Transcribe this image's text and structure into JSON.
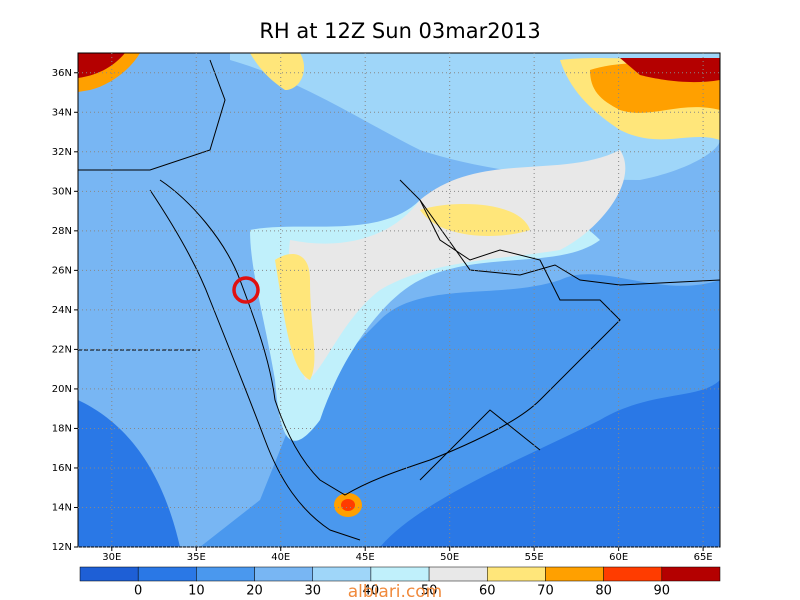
{
  "map": {
    "title": "RH at 12Z Sun 03mar2013",
    "xlim": [
      28,
      66
    ],
    "ylim": [
      12,
      37
    ],
    "xticks": [
      {
        "value": 30,
        "label": "30E"
      },
      {
        "value": 35,
        "label": "35E"
      },
      {
        "value": 40,
        "label": "40E"
      },
      {
        "value": 45,
        "label": "45E"
      },
      {
        "value": 50,
        "label": "50E"
      },
      {
        "value": 55,
        "label": "55E"
      },
      {
        "value": 60,
        "label": "60E"
      },
      {
        "value": 65,
        "label": "65E"
      }
    ],
    "yticks": [
      {
        "value": 12,
        "label": "12N"
      },
      {
        "value": 14,
        "label": "14N"
      },
      {
        "value": 16,
        "label": "16N"
      },
      {
        "value": 18,
        "label": "18N"
      },
      {
        "value": 20,
        "label": "20N"
      },
      {
        "value": 22,
        "label": "22N"
      },
      {
        "value": 24,
        "label": "24N"
      },
      {
        "value": 26,
        "label": "26N"
      },
      {
        "value": 28,
        "label": "28N"
      },
      {
        "value": 30,
        "label": "30N"
      },
      {
        "value": 32,
        "label": "32N"
      },
      {
        "value": 34,
        "label": "34N"
      },
      {
        "value": 36,
        "label": "36N"
      }
    ],
    "grid": true,
    "colorbar": {
      "levels": [
        0,
        10,
        20,
        30,
        40,
        50,
        60,
        70,
        80,
        90
      ],
      "colors": [
        "#1e5fd6",
        "#2a78e6",
        "#4a98ee",
        "#78b6f3",
        "#9fd6f9",
        "#c0f0fb",
        "#e8e8e8",
        "#ffe67a",
        "#ffa000",
        "#ff3c00",
        "#b40000"
      ]
    },
    "watermark": "albiari.com"
  }
}
